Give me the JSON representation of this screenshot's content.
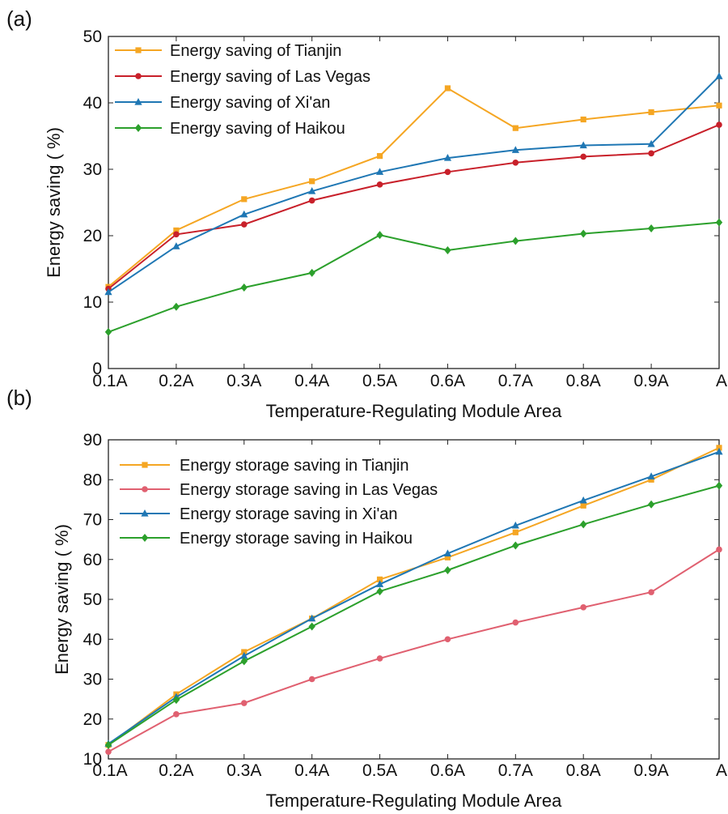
{
  "chart_data": [
    {
      "type": "line",
      "panel_label": "(a)",
      "xlabel": "Temperature-Regulating Module Area",
      "ylabel": "Energy saving ( %)",
      "categories": [
        "0.1A",
        "0.2A",
        "0.3A",
        "0.4A",
        "0.5A",
        "0.6A",
        "0.7A",
        "0.8A",
        "0.9A",
        "A"
      ],
      "ylim": [
        0,
        50
      ],
      "yticks": [
        0,
        10,
        20,
        30,
        40,
        50
      ],
      "legend_position": "top-left",
      "grid": false,
      "series": [
        {
          "name": "Energy saving of Tianjin",
          "color": "#F5A623",
          "marker": "square",
          "values": [
            12.3,
            20.8,
            25.5,
            28.2,
            32.0,
            42.2,
            36.2,
            37.5,
            38.6,
            39.6
          ]
        },
        {
          "name": "Energy saving of Las Vegas",
          "color": "#C8202A",
          "marker": "circle",
          "values": [
            12.0,
            20.2,
            21.7,
            25.3,
            27.7,
            29.6,
            31.0,
            31.9,
            32.4,
            36.7
          ]
        },
        {
          "name": "Energy saving of Xi'an",
          "color": "#1F77B4",
          "marker": "triangle",
          "values": [
            11.5,
            18.4,
            23.2,
            26.7,
            29.6,
            31.7,
            32.9,
            33.6,
            33.8,
            44.0
          ]
        },
        {
          "name": "Energy saving of Haikou",
          "color": "#2CA02C",
          "marker": "diamond",
          "values": [
            5.5,
            9.3,
            12.2,
            14.4,
            20.1,
            17.8,
            19.2,
            20.3,
            21.1,
            22.0
          ]
        }
      ]
    },
    {
      "type": "line",
      "panel_label": "(b)",
      "xlabel": "Temperature-Regulating Module Area",
      "ylabel": "Energy saving ( %)",
      "categories": [
        "0.1A",
        "0.2A",
        "0.3A",
        "0.4A",
        "0.5A",
        "0.6A",
        "0.7A",
        "0.8A",
        "0.9A",
        "A"
      ],
      "ylim": [
        10,
        90
      ],
      "yticks": [
        10,
        20,
        30,
        40,
        50,
        60,
        70,
        80,
        90
      ],
      "legend_position": "top-left",
      "grid": false,
      "series": [
        {
          "name": "Energy storage saving in Tianjin",
          "color": "#F5A623",
          "marker": "square",
          "values": [
            13.5,
            26.2,
            36.8,
            45.2,
            55.0,
            60.5,
            66.8,
            73.5,
            80.0,
            88.0
          ]
        },
        {
          "name": "Energy storage saving in Las Vegas",
          "color": "#E06070",
          "marker": "circle",
          "values": [
            11.8,
            21.2,
            24.0,
            30.0,
            35.2,
            40.0,
            44.2,
            48.0,
            51.8,
            62.5
          ]
        },
        {
          "name": "Energy storage saving in Xi'an",
          "color": "#1F77B4",
          "marker": "triangle",
          "values": [
            13.8,
            25.5,
            35.8,
            45.2,
            53.8,
            61.5,
            68.5,
            74.8,
            80.8,
            87.0
          ]
        },
        {
          "name": "Energy storage saving in Haikou",
          "color": "#2CA02C",
          "marker": "diamond",
          "values": [
            13.5,
            24.8,
            34.5,
            43.2,
            52.0,
            57.3,
            63.5,
            68.8,
            73.8,
            78.5
          ]
        }
      ]
    }
  ]
}
